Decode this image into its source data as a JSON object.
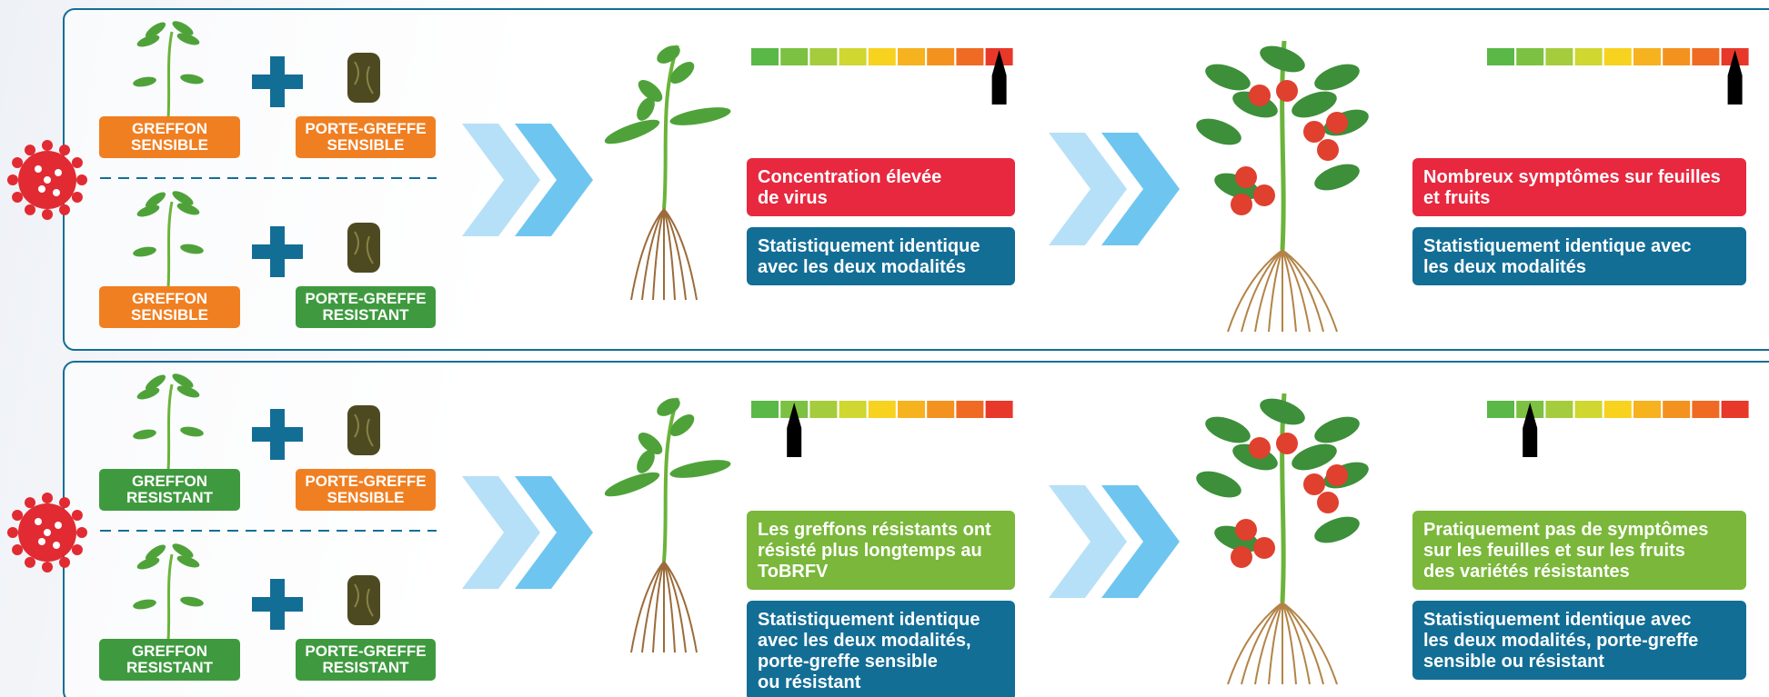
{
  "panels": [
    {
      "rows": [
        {
          "scion": [
            "GREFFON",
            "SENSIBLE"
          ],
          "rootstock": [
            "PORTE-GREFFE",
            "SENSIBLE"
          ]
        },
        {
          "scion": [
            "GREFFON",
            "SENSIBLE"
          ],
          "rootstock": [
            "PORTE-GREFFE",
            "RESISTANT"
          ]
        }
      ],
      "plantlet": {
        "result": [
          "Concentration élevée",
          "de virus"
        ],
        "stat": [
          "Statistiquement identique",
          "avec les deux modalités"
        ]
      },
      "adult": {
        "result": [
          "Nombreux symptômes sur feuilles",
          "et fruits"
        ],
        "stat": [
          "Statistiquement identique avec",
          "les deux modalités"
        ]
      }
    },
    {
      "rows": [
        {
          "scion": [
            "GREFFON",
            "RESISTANT"
          ],
          "rootstock": [
            "PORTE-GREFFE",
            "SENSIBLE"
          ]
        },
        {
          "scion": [
            "GREFFON",
            "RESISTANT"
          ],
          "rootstock": [
            "PORTE-GREFFE",
            "RESISTANT"
          ]
        }
      ],
      "plantlet": {
        "result": [
          "Les greffons résistants ont",
          "résisté plus longtemps au",
          "ToBRFV"
        ],
        "stat": [
          "Statistiquement identique",
          "avec les deux modalités,",
          "porte-greffe sensible",
          "ou résistant"
        ]
      },
      "adult": {
        "result": [
          "Pratiquement pas de symptômes",
          "sur les feuilles et sur les fruits",
          "des variétés résistantes"
        ],
        "stat": [
          "Statistiquement identique avec",
          "les deux modalités, porte-greffe",
          "sensible ou résistant"
        ]
      }
    }
  ]
}
